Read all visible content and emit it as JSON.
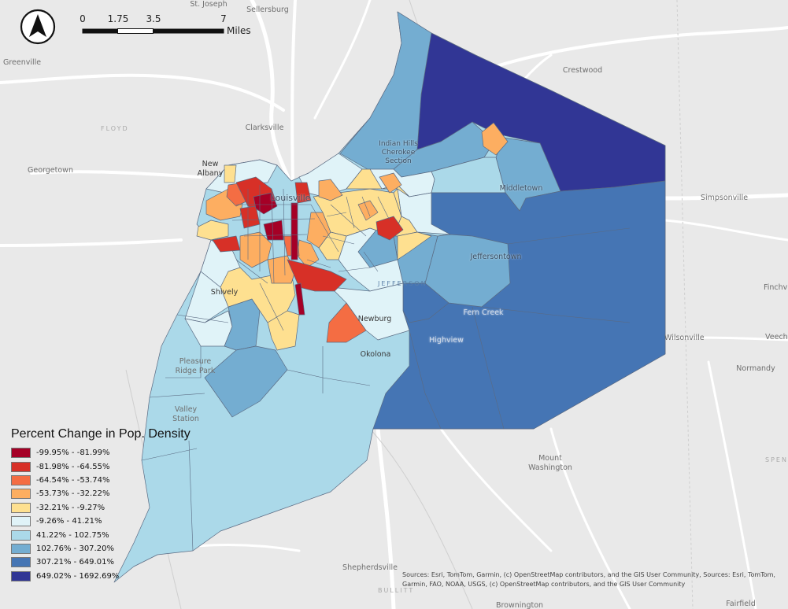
{
  "map": {
    "legend": {
      "title": "Percent Change in Pop. Density",
      "items": [
        {
          "label": "-99.95% - -81.99%",
          "color": "#a50026"
        },
        {
          "label": "-81.98% - -64.55%",
          "color": "#d73027"
        },
        {
          "label": "-64.54% - -53.74%",
          "color": "#f46d43"
        },
        {
          "label": "-53.73% - -32.22%",
          "color": "#fdae61"
        },
        {
          "label": "-32.21% - -9.27%",
          "color": "#fee090"
        },
        {
          "label": "-9.26% - 41.21%",
          "color": "#e0f3f8"
        },
        {
          "label": "41.22% - 102.75%",
          "color": "#abd9e9"
        },
        {
          "label": "102.76% - 307.20%",
          "color": "#74add1"
        },
        {
          "label": "307.21% - 649.01%",
          "color": "#4575b4"
        },
        {
          "label": "649.02% - 1692.69%",
          "color": "#313695"
        }
      ]
    },
    "scale_bar": {
      "ticks": [
        "0",
        "1.75",
        "3.5",
        "7"
      ],
      "unit": "Miles"
    },
    "north_arrow": {
      "icon": "north-arrow-icon"
    },
    "places": [
      {
        "id": "st-joseph",
        "text": "St. Joseph"
      },
      {
        "id": "sellersburg",
        "text": "Sellersburg"
      },
      {
        "id": "greenville",
        "text": "Greenville"
      },
      {
        "id": "floyd",
        "text": "FLOYD"
      },
      {
        "id": "crestwood",
        "text": "Crestwood"
      },
      {
        "id": "clarksville",
        "text": "Clarksville"
      },
      {
        "id": "georgetown",
        "text": "Georgetown"
      },
      {
        "id": "new-albany",
        "text": "New\nAlbany"
      },
      {
        "id": "indian-hills",
        "text": "Indian Hills\nCherokee\nSection"
      },
      {
        "id": "louisville",
        "text": "Louisville"
      },
      {
        "id": "middletown",
        "text": "Middletown"
      },
      {
        "id": "simpsonville",
        "text": "Simpsonville"
      },
      {
        "id": "jeffersontown",
        "text": "Jeffersontown"
      },
      {
        "id": "jefferson",
        "text": "JEFFERSON"
      },
      {
        "id": "shively",
        "text": "Shively"
      },
      {
        "id": "finchville",
        "text": "Finchv"
      },
      {
        "id": "fern-creek",
        "text": "Fern Creek"
      },
      {
        "id": "newburg",
        "text": "Newburg"
      },
      {
        "id": "highview",
        "text": "Highview"
      },
      {
        "id": "wilsonville",
        "text": "Wilsonville"
      },
      {
        "id": "veechdale",
        "text": "Veech"
      },
      {
        "id": "okolona",
        "text": "Okolona"
      },
      {
        "id": "pleasure-ridge-park",
        "text": "Pleasure\nRidge Park"
      },
      {
        "id": "normandy",
        "text": "Normandy"
      },
      {
        "id": "valley-station",
        "text": "Valley\nStation"
      },
      {
        "id": "spencer",
        "text": "SPEN"
      },
      {
        "id": "mount-washington",
        "text": "Mount\nWashington"
      },
      {
        "id": "shepherdsville",
        "text": "Shepherdsville"
      },
      {
        "id": "bullitt",
        "text": "BULLITT"
      },
      {
        "id": "brooks",
        "text": "Brownington"
      },
      {
        "id": "fairfield",
        "text": "Fairfield"
      }
    ],
    "attribution": "Sources:  Esri, TomTom, Garmin, (c) OpenStreetMap contributors, and the GIS User Community, Sources: Esri, TomTom, Garmin, FAO, NOAA, USGS, (c) OpenStreetMap contributors, and the GIS User Community"
  }
}
